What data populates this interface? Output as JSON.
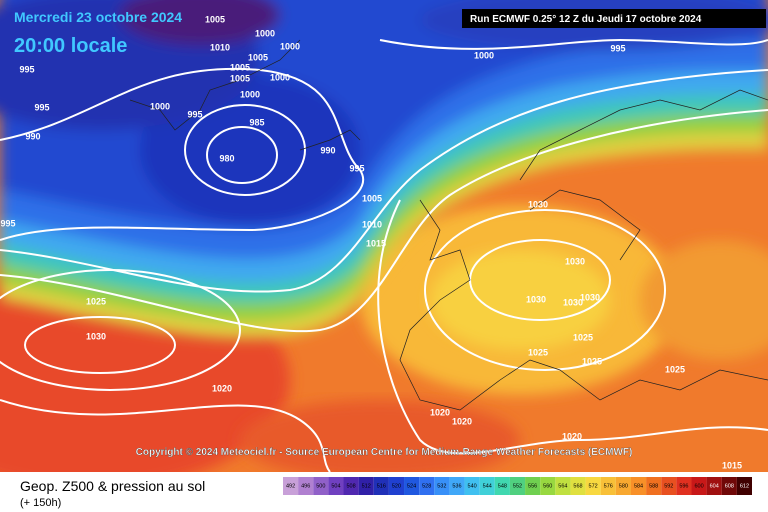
{
  "header": {
    "date": "Mercredi 23 octobre 2024",
    "time": "20:00 locale",
    "run": "Run ECMWF 0.25° 12 Z du Jeudi 17 octobre 2024"
  },
  "copyright": "Copyright © 2024 Meteociel.fr - Source European Centre for Medium-Range Weather Forecasts (ECMWF)",
  "footer": {
    "title": "Geop. Z500 & pression au sol",
    "lead": "(+ 150h)"
  },
  "isobars": [
    1005,
    1010,
    1000,
    1000,
    995,
    1005,
    1005,
    1000,
    1005,
    1000,
    1000,
    995,
    995,
    990,
    985,
    980,
    990,
    995,
    1005,
    1010,
    1015,
    995,
    1000,
    995,
    1030,
    1030,
    1030,
    1030,
    1030,
    1025,
    1030,
    1020,
    1025,
    1025,
    1025,
    1025,
    1020,
    1020,
    1020,
    1015
  ],
  "legend": {
    "levels": [
      492,
      496,
      500,
      504,
      508,
      512,
      516,
      520,
      524,
      528,
      532,
      536,
      540,
      544,
      548,
      552,
      556,
      560,
      564,
      568,
      572,
      576,
      580,
      584,
      588,
      592,
      596,
      600,
      604,
      608,
      612
    ],
    "colors": [
      "#c8a0d8",
      "#b080d0",
      "#9060c8",
      "#7040c0",
      "#5028b0",
      "#3020a8",
      "#2030b8",
      "#2040d0",
      "#2058e0",
      "#3070f0",
      "#3890f8",
      "#40a8f8",
      "#40c0f0",
      "#40d0d8",
      "#40d8b0",
      "#50d080",
      "#70d050",
      "#98d840",
      "#c0e040",
      "#e0e040",
      "#f8d840",
      "#f8c038",
      "#f8a830",
      "#f89028",
      "#f07020",
      "#e85020",
      "#e03020",
      "#c81818",
      "#a01010",
      "#700808",
      "#400000"
    ]
  }
}
